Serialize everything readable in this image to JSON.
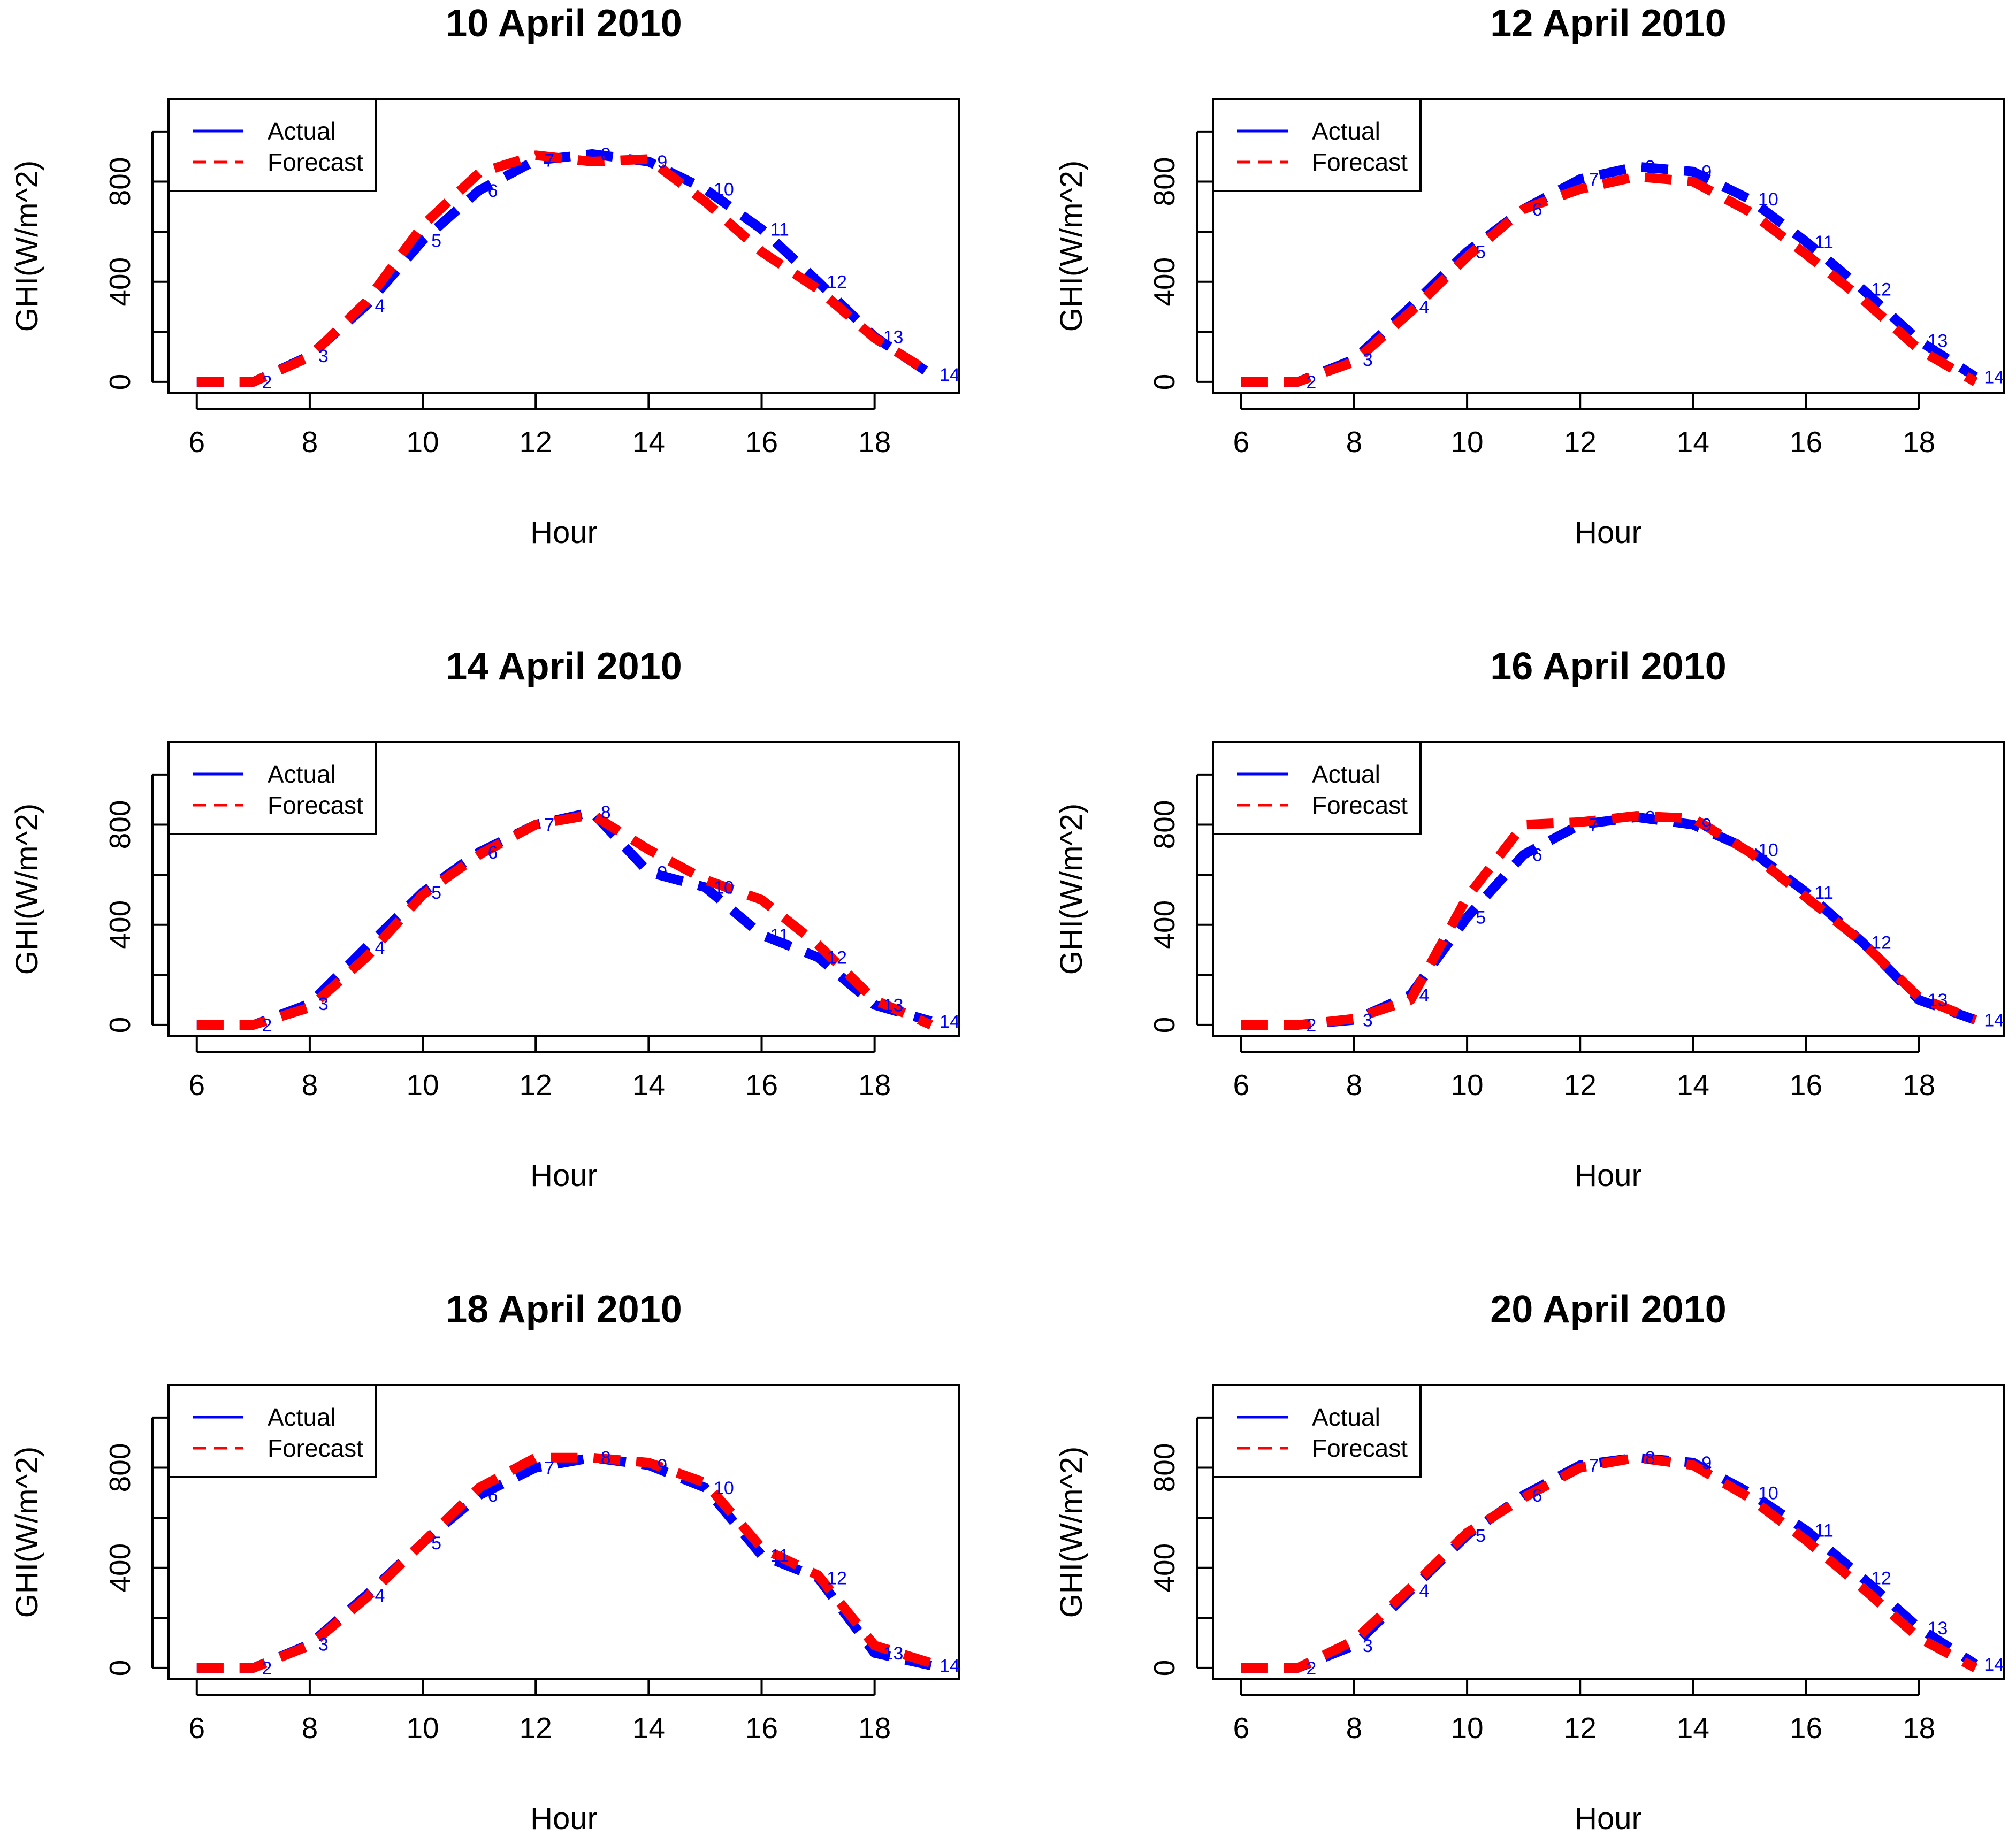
{
  "colors": {
    "actual": "#0000ff",
    "forecast": "#ff0000",
    "axis": "#000000",
    "background": "#ffffff"
  },
  "chart_data": [
    {
      "type": "line",
      "title": "10 April 2010",
      "xlabel": "Hour",
      "ylabel": "GHI(W/m^2)",
      "xlim": [
        5.5,
        19.5
      ],
      "ylim": [
        -45,
        1130
      ],
      "xticks": [
        6,
        8,
        10,
        12,
        14,
        16,
        18
      ],
      "yticks": [
        0,
        400,
        800
      ],
      "legend": {
        "position": "top-left",
        "entries": [
          "Actual",
          "Forecast"
        ]
      },
      "x": [
        6,
        7,
        8,
        9,
        10,
        11,
        12,
        13,
        14,
        15,
        16,
        17,
        18,
        19
      ],
      "point_labels": [
        "1",
        "2",
        "3",
        "4",
        "5",
        "6",
        "7",
        "8",
        "9",
        "10",
        "11",
        "12",
        "13",
        "14"
      ],
      "series": [
        {
          "name": "Actual",
          "values": [
            0,
            0,
            105,
            305,
            565,
            765,
            885,
            910,
            880,
            770,
            610,
            400,
            180,
            30
          ]
        },
        {
          "name": "Forecast",
          "values": [
            0,
            0,
            100,
            320,
            625,
            835,
            905,
            880,
            890,
            720,
            520,
            370,
            175,
            35
          ]
        }
      ]
    },
    {
      "type": "line",
      "title": "12 April 2010",
      "xlabel": "Hour",
      "ylabel": "GHI(W/m^2)",
      "xlim": [
        5.5,
        19.5
      ],
      "ylim": [
        -45,
        1130
      ],
      "xticks": [
        6,
        8,
        10,
        12,
        14,
        16,
        18
      ],
      "yticks": [
        0,
        400,
        800
      ],
      "legend": {
        "position": "top-left",
        "entries": [
          "Actual",
          "Forecast"
        ]
      },
      "x": [
        6,
        7,
        8,
        9,
        10,
        11,
        12,
        13,
        14,
        15,
        16,
        17,
        18,
        19
      ],
      "point_labels": [
        "1",
        "2",
        "3",
        "4",
        "5",
        "6",
        "7",
        "8",
        "9",
        "10",
        "11",
        "12",
        "13",
        "14"
      ],
      "series": [
        {
          "name": "Actual",
          "values": [
            0,
            0,
            90,
            300,
            520,
            690,
            810,
            860,
            840,
            730,
            560,
            370,
            165,
            20
          ]
        },
        {
          "name": "Forecast",
          "values": [
            0,
            0,
            80,
            280,
            500,
            690,
            770,
            820,
            800,
            680,
            510,
            330,
            130,
            0
          ]
        }
      ]
    },
    {
      "type": "line",
      "title": "14 April 2010",
      "xlabel": "Hour",
      "ylabel": "GHI(W/m^2)",
      "xlim": [
        5.5,
        19.5
      ],
      "ylim": [
        -45,
        1130
      ],
      "xticks": [
        6,
        8,
        10,
        12,
        14,
        16,
        18
      ],
      "yticks": [
        0,
        400,
        800
      ],
      "legend": {
        "position": "top-left",
        "entries": [
          "Actual",
          "Forecast"
        ]
      },
      "x": [
        6,
        7,
        8,
        9,
        10,
        11,
        12,
        13,
        14,
        15,
        16,
        17,
        18,
        19
      ],
      "point_labels": [
        "1",
        "2",
        "3",
        "4",
        "5",
        "6",
        "7",
        "8",
        "9",
        "10",
        "11",
        "12",
        "13",
        "14"
      ],
      "series": [
        {
          "name": "Actual",
          "values": [
            0,
            0,
            85,
            310,
            530,
            690,
            800,
            850,
            610,
            550,
            360,
            270,
            80,
            15
          ]
        },
        {
          "name": "Forecast",
          "values": [
            0,
            0,
            70,
            270,
            520,
            680,
            800,
            840,
            700,
            580,
            500,
            320,
            100,
            0
          ]
        }
      ]
    },
    {
      "type": "line",
      "title": "16 April 2010",
      "xlabel": "Hour",
      "ylabel": "GHI(W/m^2)",
      "xlim": [
        5.5,
        19.5
      ],
      "ylim": [
        -45,
        1130
      ],
      "xticks": [
        6,
        8,
        10,
        12,
        14,
        16,
        18
      ],
      "yticks": [
        0,
        400,
        800
      ],
      "legend": {
        "position": "top-left",
        "entries": [
          "Actual",
          "Forecast"
        ]
      },
      "x": [
        6,
        7,
        8,
        9,
        10,
        11,
        12,
        13,
        14,
        15,
        16,
        17,
        18,
        19
      ],
      "point_labels": [
        "1",
        "2",
        "3",
        "4",
        "5",
        "6",
        "7",
        "8",
        "9",
        "10",
        "11",
        "12",
        "13",
        "14"
      ],
      "series": [
        {
          "name": "Actual",
          "values": [
            0,
            0,
            20,
            120,
            430,
            680,
            800,
            830,
            800,
            700,
            530,
            330,
            100,
            20
          ]
        },
        {
          "name": "Forecast",
          "values": [
            0,
            0,
            25,
            100,
            510,
            800,
            810,
            835,
            825,
            690,
            510,
            330,
            110,
            20
          ]
        }
      ]
    },
    {
      "type": "line",
      "title": "18 April 2010",
      "xlabel": "Hour",
      "ylabel": "GHI(W/m^2)",
      "xlim": [
        5.5,
        19.5
      ],
      "ylim": [
        -45,
        1130
      ],
      "xticks": [
        6,
        8,
        10,
        12,
        14,
        16,
        18
      ],
      "yticks": [
        0,
        400,
        800
      ],
      "legend": {
        "position": "top-left",
        "entries": [
          "Actual",
          "Forecast"
        ]
      },
      "x": [
        6,
        7,
        8,
        9,
        10,
        11,
        12,
        13,
        14,
        15,
        16,
        17,
        18,
        19
      ],
      "point_labels": [
        "1",
        "2",
        "3",
        "4",
        "5",
        "6",
        "7",
        "8",
        "9",
        "10",
        "11",
        "12",
        "13",
        "14"
      ],
      "series": [
        {
          "name": "Actual",
          "values": [
            0,
            0,
            95,
            290,
            500,
            690,
            800,
            840,
            810,
            720,
            450,
            360,
            60,
            10
          ]
        },
        {
          "name": "Forecast",
          "values": [
            0,
            0,
            90,
            280,
            500,
            720,
            840,
            840,
            820,
            740,
            480,
            370,
            90,
            20
          ]
        }
      ]
    },
    {
      "type": "line",
      "title": "20 April 2010",
      "xlabel": "Hour",
      "ylabel": "GHI(W/m^2)",
      "xlim": [
        5.5,
        19.5
      ],
      "ylim": [
        -45,
        1130
      ],
      "xticks": [
        6,
        8,
        10,
        12,
        14,
        16,
        18
      ],
      "yticks": [
        0,
        400,
        800
      ],
      "legend": {
        "position": "top-left",
        "entries": [
          "Actual",
          "Forecast"
        ]
      },
      "x": [
        6,
        7,
        8,
        9,
        10,
        11,
        12,
        13,
        14,
        15,
        16,
        17,
        18,
        19
      ],
      "point_labels": [
        "1",
        "2",
        "3",
        "4",
        "5",
        "6",
        "7",
        "8",
        "9",
        "10",
        "11",
        "12",
        "13",
        "14"
      ],
      "series": [
        {
          "name": "Actual",
          "values": [
            0,
            0,
            90,
            310,
            530,
            690,
            810,
            840,
            820,
            700,
            550,
            360,
            160,
            15
          ]
        },
        {
          "name": "Forecast",
          "values": [
            0,
            0,
            110,
            320,
            540,
            680,
            800,
            840,
            810,
            680,
            510,
            320,
            120,
            0
          ]
        }
      ]
    }
  ]
}
